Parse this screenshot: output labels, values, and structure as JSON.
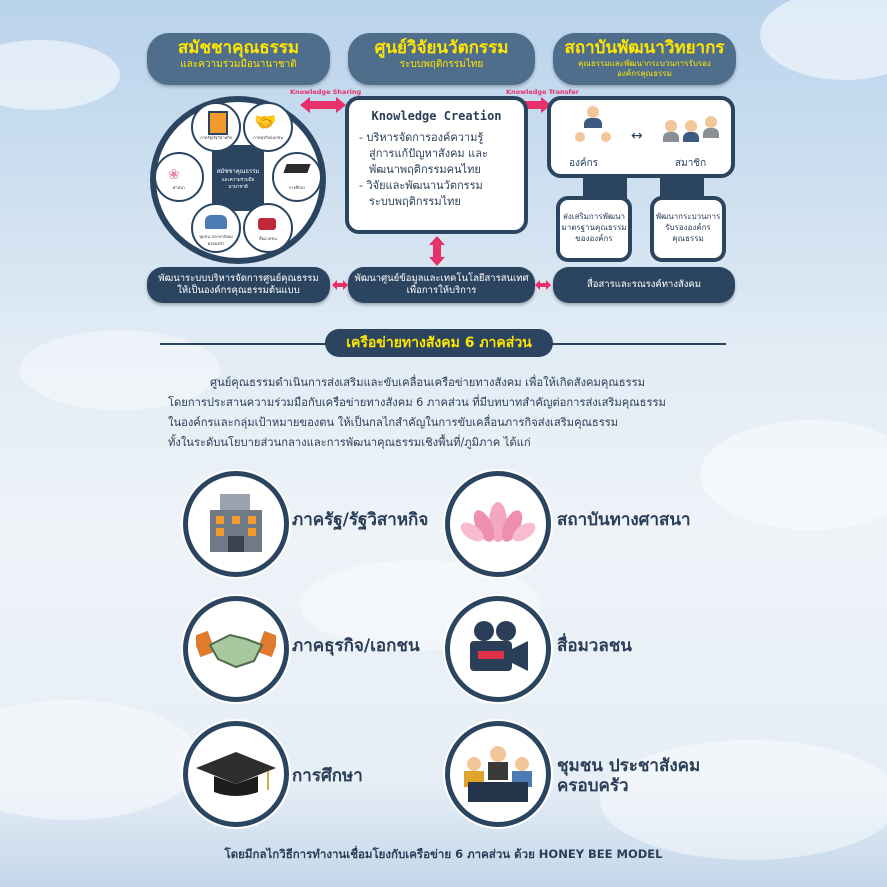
{
  "colors": {
    "navy": "#2b4561",
    "slate": "#4f6e8c",
    "yellow": "#ffe600",
    "pink": "#e8306a"
  },
  "top": {
    "left": {
      "title": "สมัชชาคุณธรรม",
      "subtitle": "และความร่วมมือนานาชาติ"
    },
    "center": {
      "title": "ศูนย์วิจัยนวัตกรรม",
      "subtitle": "ระบบพฤติกรรมไทย"
    },
    "right": {
      "title": "สถาบันพัฒนาวิทยากร",
      "subtitle1": "คุณธรรมและพัฒนากระบวนการรับรอง",
      "subtitle2": "องค์กรคุณธรรม"
    }
  },
  "arrow_labels": {
    "sharing": "Knowledge Sharing",
    "transfer": "Knowledge Transfer"
  },
  "knowledge_box": {
    "title": "Knowledge Creation",
    "item1": [
      "- บริหารจัดการองค์ความรู้",
      "สู่การแก้ปัญหาสังคม และ",
      "พัฒนาพฤติกรรมคนไทย"
    ],
    "item2": [
      "- วิจัยและพัฒนานวัตกรรม",
      "ระบบพฤติกรรมไทย"
    ]
  },
  "circle": {
    "center1": "สมัชชาคุณธรรม",
    "center2": "และความร่วมมือนานาชาติ",
    "n1": "ภาครัฐ/รัฐวิสาหกิจ",
    "n2": "ภาคธุรกิจ/เอกชน",
    "n3": "การศึกษา",
    "n4": "สื่อมวลชน",
    "n5": "ชุมชน ประชาสังคม ครอบครัว",
    "n6": "ศาสนา"
  },
  "org": {
    "org_label": "องค์กร",
    "member_label": "สมาชิก",
    "sub1": [
      "ส่งเสริมการพัฒนา",
      "มาตรฐานคุณธรรม",
      "ขององค์กร"
    ],
    "sub2": [
      "พัฒนากระบวนการ",
      "รับรององค์กร",
      "คุณธรรม"
    ]
  },
  "bottom_pills": {
    "left": [
      "พัฒนาระบบบริหารจัดการศูนย์คุณธรรม",
      "ให้เป็นองค์กรคุณธรรมต้นแบบ"
    ],
    "center": [
      "พัฒนาศูนย์ข้อมูลและเทคโนโลยีสารสนเทศ",
      "เพื่อการให้บริการ"
    ],
    "right": "สื่อสารและรณรงค์ทางสังคม"
  },
  "section": {
    "title": "เครือข่ายทางสังคม 6 ภาคส่วน",
    "para": [
      "ศูนย์คุณธรรมดำเนินการส่งเสริมและขับเคลื่อนเครือข่ายทางสังคม เพื่อให้เกิดสังคมคุณธรรม",
      "โดยการประสานความร่วมมือกับเครือข่ายทางสังคม 6 ภาคส่วน ที่มีบทบาทสำคัญต่อการส่งเสริมคุณธรรม",
      "ในองค์กรและกลุ่มเป้าหมายของตน ให้เป็นกลไกสำคัญในการขับเคลื่อนภารกิจส่งเสริมคุณธรรม",
      "ทั้งในระดับนโยบายส่วนกลางและการพัฒนาคุณธรรมเชิงพื้นที่/ภูมิภาค ได้แก่"
    ]
  },
  "sectors": [
    {
      "label": "ภาครัฐ/รัฐวิสาหกิจ",
      "icon": "building-icon"
    },
    {
      "label": "สถาบันทางศาสนา",
      "icon": "lotus-icon"
    },
    {
      "label": "ภาคธุรกิจ/เอกชน",
      "icon": "handshake-icon"
    },
    {
      "label": "สื่อมวลชน",
      "icon": "camera-icon"
    },
    {
      "label": "การศึกษา",
      "icon": "graduation-cap-icon"
    },
    {
      "label": "ชุมชน ประชาสังคม",
      "label2": "ครอบครัว",
      "icon": "community-icon"
    }
  ],
  "footer": "โดยมีกลไกวิธีการทำงานเชื่อมโยงกับเครือข่าย 6 ภาคส่วน ด้วย HONEY BEE MODEL"
}
